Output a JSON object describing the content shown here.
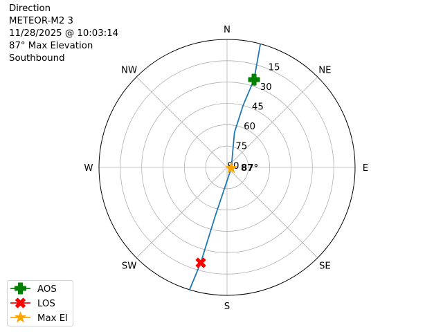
{
  "chart_data": {
    "type": "polar-line",
    "title_lines": [
      "Direction",
      "METEOR-M2 3",
      "11/28/2025 @ 10:03:14",
      "87° Max Elevation",
      "Southbound"
    ],
    "theta_direction": "clockwise",
    "theta_zero": "N",
    "compass_labels": [
      {
        "label": "N",
        "az": 0
      },
      {
        "label": "NE",
        "az": 45
      },
      {
        "label": "E",
        "az": 90
      },
      {
        "label": "SE",
        "az": 135
      },
      {
        "label": "S",
        "az": 180
      },
      {
        "label": "SW",
        "az": 225
      },
      {
        "label": "W",
        "az": 270
      },
      {
        "label": "NW",
        "az": 315
      }
    ],
    "radial_axis": "elevation (deg), center = 90",
    "radial_ticks": [
      "90",
      "75",
      "60",
      "45",
      "30",
      "15"
    ],
    "rlim": [
      0,
      90
    ],
    "grid": true,
    "track": {
      "color": "#1f77b4",
      "points": [
        [
          15.1,
          0
        ],
        [
          17.1,
          25.4
        ],
        [
          14.5,
          45
        ],
        [
          12,
          65
        ],
        [
          101,
          87
        ],
        [
          193.6,
          55
        ],
        [
          195.4,
          20.4
        ],
        [
          197,
          0
        ]
      ]
    },
    "markers": [
      {
        "name": "AOS",
        "az": 17.1,
        "el": 25.4,
        "color": "#008000",
        "shape": "plus"
      },
      {
        "name": "LOS",
        "az": 195.4,
        "el": 20.4,
        "color": "#ff0000",
        "shape": "x"
      },
      {
        "name": "Max El",
        "az": 101,
        "el": 87,
        "color": "#ffa500",
        "shape": "star"
      }
    ],
    "annotation": "87°",
    "legend_position": "lower-left"
  }
}
